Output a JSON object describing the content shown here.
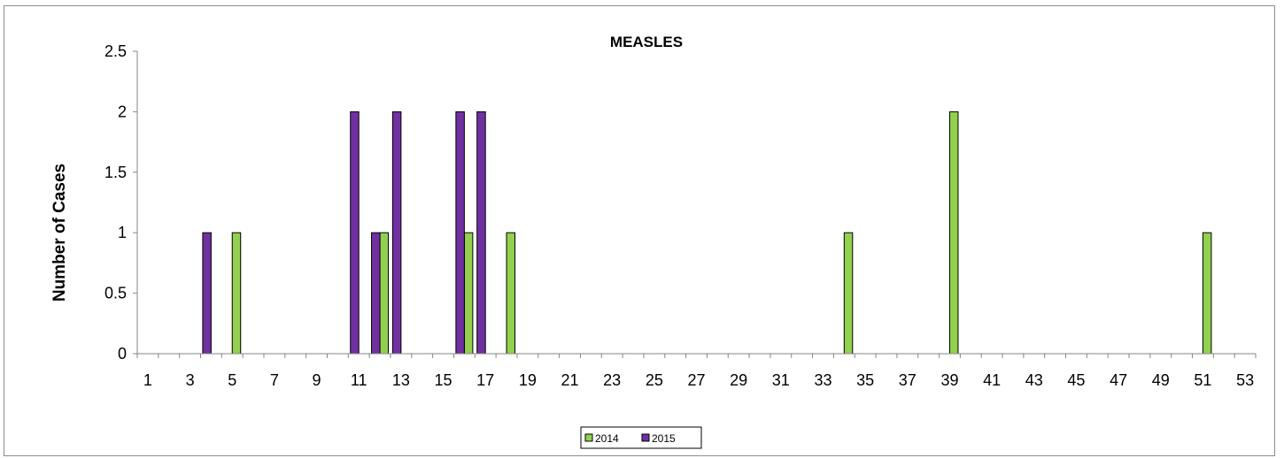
{
  "chart_data": {
    "type": "bar",
    "title": "MEASLES",
    "xlabel": "",
    "ylabel": "Number of Cases",
    "ylim": [
      0,
      2.5
    ],
    "y_ticks": [
      "0",
      "0.5",
      "1",
      "1.5",
      "2",
      "2.5"
    ],
    "y_tick_values": [
      0,
      0.5,
      1,
      1.5,
      2,
      2.5
    ],
    "categories": [
      1,
      2,
      3,
      4,
      5,
      6,
      7,
      8,
      9,
      10,
      11,
      12,
      13,
      14,
      15,
      16,
      17,
      18,
      19,
      20,
      21,
      22,
      23,
      24,
      25,
      26,
      27,
      28,
      29,
      30,
      31,
      32,
      33,
      34,
      35,
      36,
      37,
      38,
      39,
      40,
      41,
      42,
      43,
      44,
      45,
      46,
      47,
      48,
      49,
      50,
      51,
      52,
      53
    ],
    "x_tick_labels": [
      "1",
      "3",
      "5",
      "7",
      "9",
      "11",
      "13",
      "15",
      "17",
      "19",
      "21",
      "23",
      "25",
      "27",
      "29",
      "31",
      "33",
      "35",
      "37",
      "39",
      "41",
      "43",
      "45",
      "47",
      "49",
      "51",
      "53"
    ],
    "series": [
      {
        "name": "2014",
        "color": "#92d050",
        "values": [
          0,
          0,
          0,
          0,
          1,
          0,
          0,
          0,
          0,
          0,
          0,
          1,
          0,
          0,
          0,
          1,
          0,
          1,
          0,
          0,
          0,
          0,
          0,
          0,
          0,
          0,
          0,
          0,
          0,
          0,
          0,
          0,
          0,
          1,
          0,
          0,
          0,
          0,
          2,
          0,
          0,
          0,
          0,
          0,
          0,
          0,
          0,
          0,
          0,
          0,
          1,
          0,
          0
        ]
      },
      {
        "name": "2015",
        "color": "#7030a0",
        "values": [
          0,
          0,
          0,
          1,
          0,
          0,
          0,
          0,
          0,
          0,
          2,
          1,
          2,
          0,
          0,
          2,
          2,
          0,
          0,
          0,
          0,
          0,
          0,
          0,
          0,
          0,
          0,
          0,
          0,
          0,
          0,
          0,
          0,
          0,
          0,
          0,
          0,
          0,
          0,
          0,
          0,
          0,
          0,
          0,
          0,
          0,
          0,
          0,
          0,
          0,
          0,
          0,
          0
        ]
      }
    ],
    "legend_position": "bottom",
    "grid": false
  }
}
